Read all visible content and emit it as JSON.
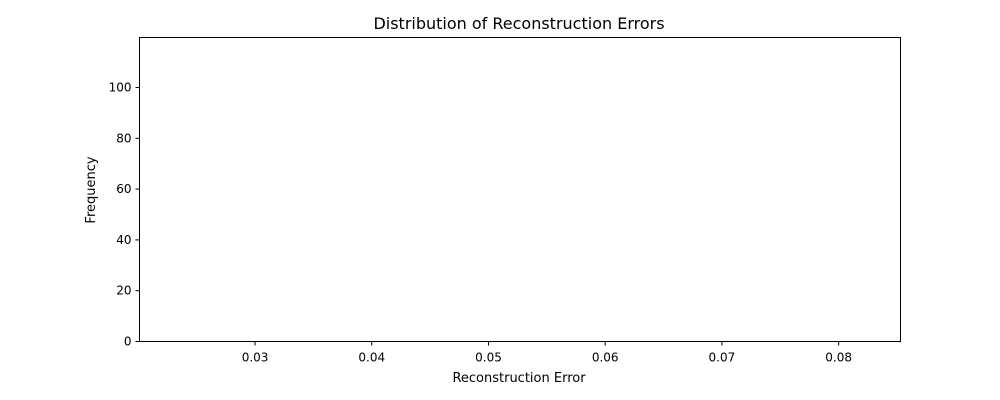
{
  "chart_data": {
    "type": "bar",
    "title": "Distribution of Reconstruction Errors",
    "xlabel": "Reconstruction Error",
    "ylabel": "Frequency",
    "xlim": [
      0.0201,
      0.0853
    ],
    "ylim": [
      0,
      119.7
    ],
    "x_ticks": [
      0.03,
      0.04,
      0.05,
      0.06,
      0.07,
      0.08
    ],
    "x_tick_labels": [
      "0.03",
      "0.04",
      "0.05",
      "0.06",
      "0.07",
      "0.08"
    ],
    "y_ticks": [
      0,
      20,
      40,
      60,
      80,
      100
    ],
    "y_tick_labels": [
      "0",
      "20",
      "40",
      "60",
      "80",
      "100"
    ],
    "bins": [],
    "values": [],
    "grid": false,
    "legend": false
  }
}
